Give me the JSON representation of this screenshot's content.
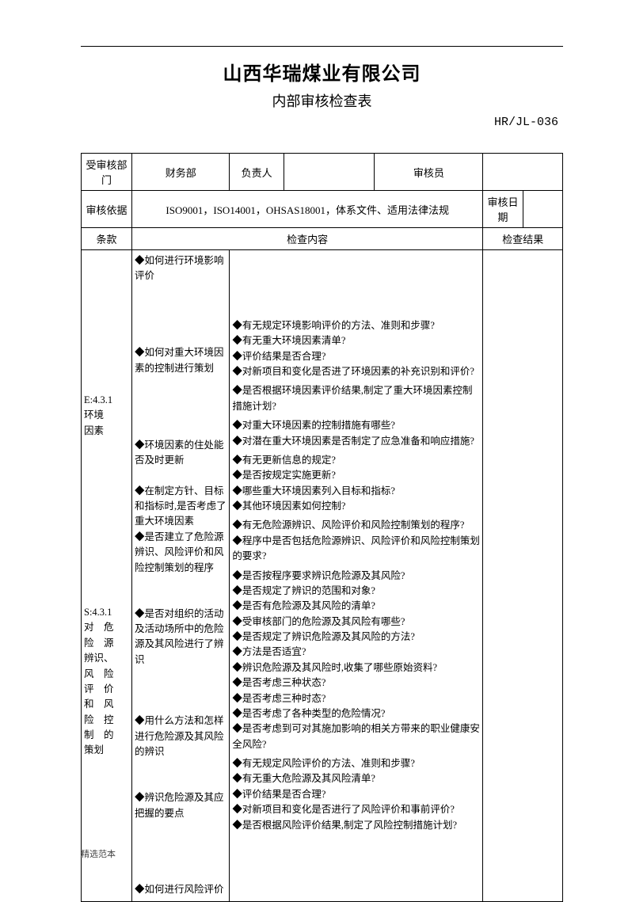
{
  "header": {
    "company": "山西华瑞煤业有限公司",
    "subtitle": "内部审核检查表",
    "doc_code": "HR/JL-036"
  },
  "info": {
    "dept_label": "受审核部门",
    "dept_value": "财务部",
    "owner_label": "负责人",
    "owner_value": "",
    "auditor_label": "审核员",
    "auditor_value": "",
    "basis_label": "审核依据",
    "basis_value": "ISO9001，ISO14001，OHSAS18001，体系文件、适用法律法规",
    "date_label": "审核日期",
    "date_value": ""
  },
  "columns": {
    "clause": "条款",
    "content": "检查内容",
    "result": "检查结果"
  },
  "sections": [
    {
      "clause": "E:4.3.1\n环境\n因素",
      "mid": [
        "◆如何进行环境影响评价",
        "",
        "",
        "",
        "",
        "◆如何对重大环境因素的控制进行策划",
        "",
        "",
        "",
        "",
        "◆环境因素的住处能否及时更新",
        "",
        "◆在制定方针、目标和指标时,是否考虑了重大环境因素"
      ],
      "right": [
        "◆有无规定环境影响评价的方法、准则和步骤?",
        "◆有无重大环境因素清单?",
        "◆评价结果是否合理?",
        "◆对新项目和变化是否进了环境因素的补充识别和评价?",
        "",
        "◆是否根据环境因素评价结果,制定了重大环境因素控制措施计划?",
        "",
        "◆对重大环境因素的控制措施有哪些?",
        "◆对潜在重大环境因素是否制定了应急准备和响应措施?",
        "",
        "◆有无更新信息的规定?",
        "◆是否按规定实施更新?",
        "◆哪些重大环境因素列入目标和指标?",
        "◆其他环境因素如何控制?",
        ""
      ]
    },
    {
      "clause": "S:4.3.1\n对　危\n险　源\n辨识、\n风　险\n评　价\n和　风\n险　控\n制　的\n策划",
      "mid": [
        "◆是否建立了危险源辨识、风险评价和风险控制策划的程序",
        "",
        "",
        "◆是否对组织的活动及活动场所中的危险源及其风险进行了辨识",
        "",
        "",
        "",
        "◆用什么方法和怎样进行危险源及其风险的辨识",
        "",
        "",
        "◆辨识危险源及其应把握的要点",
        "",
        "",
        "",
        "",
        "◆如何进行风险评价"
      ],
      "right": [
        "◆有无危险源辨识、风险评价和风险控制策划的程序?",
        "◆程序中是否包括危险源辨识、风险评价和风险控制策划的要求?",
        "",
        "◆是否按程序要求辨识危险源及其风险?",
        "◆是否规定了辨识的范围和对象?",
        "◆是否有危险源及其风险的清单?",
        "◆受审核部门的危险源及其风险有哪些?",
        "◆是否规定了辨识危险源及其风险的方法?",
        "◆方法是否适宜?",
        "◆辨识危险源及其风险时,收集了哪些原始资料?",
        "◆是否考虑三种状态?",
        "◆是否考虑三种时态?",
        "◆是否考虑了各种类型的危险情况?",
        "◆是否考虑到可对其施加影响的相关方带来的职业健康安全风险?",
        "",
        "◆有无规定风险评价的方法、准则和步骤?",
        "◆有无重大危险源及其风险清单?",
        "◆评价结果是否合理?",
        "◆对新项目和变化是否进行了风险评价和事前评价?",
        "◆是否根据风险评价结果,制定了风险控制措施计划?"
      ]
    }
  ],
  "footer": "精选范本"
}
